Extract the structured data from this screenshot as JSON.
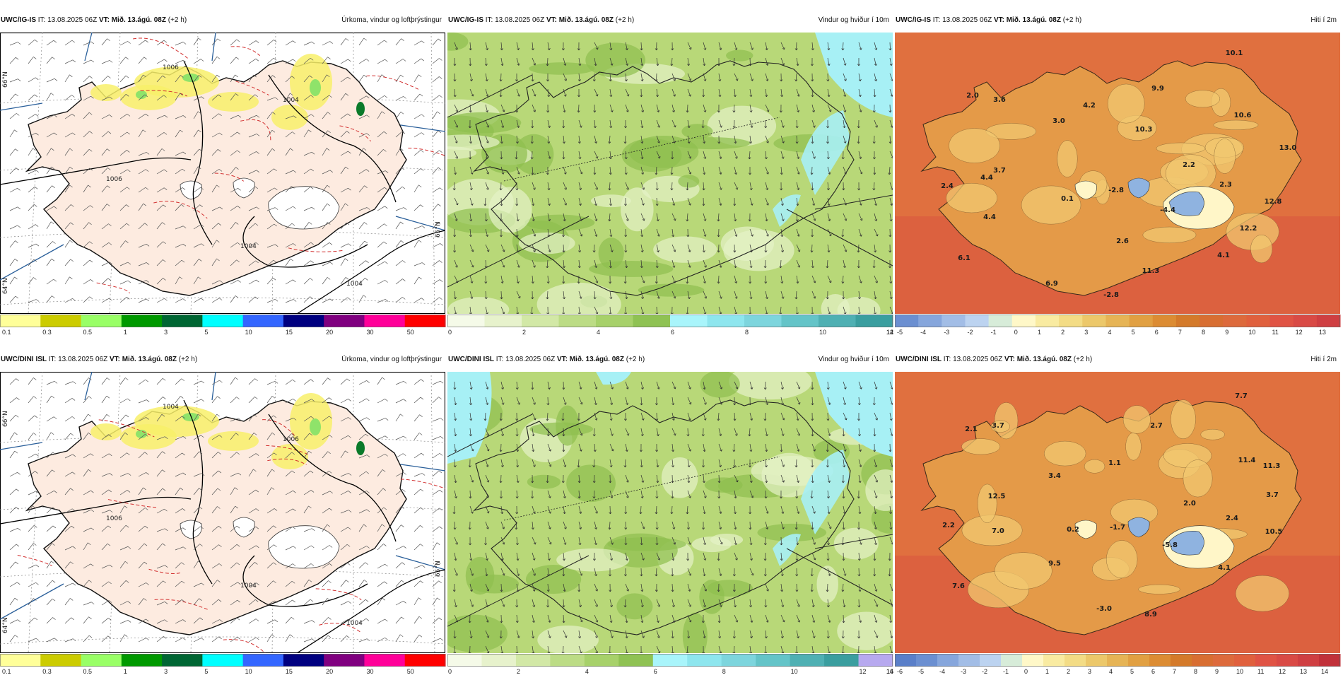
{
  "colors": {
    "land_precip": "#fdebe0",
    "sea_precip": "#ffffff",
    "wind_bg": "#b8d878",
    "wind_light": "#e6f2c7",
    "wind_dark": "#8fbf4f",
    "wind_cyan": "#a7f0f5",
    "temp_sea": "#e0703f",
    "temp_land": "#e49a48",
    "temp_high": "#f2c870",
    "temp_cold": "#8fb3e0"
  },
  "colorbars": {
    "precip": {
      "colors": [
        "#ffff99",
        "#cccc00",
        "#99ff66",
        "#009900",
        "#006633",
        "#00ffff",
        "#3366ff",
        "#000080",
        "#800080",
        "#ff0099",
        "#ff0000"
      ],
      "labels": [
        "0.1",
        "0.3",
        "0.5",
        "1",
        "3",
        "5",
        "10",
        "15",
        "20",
        "30",
        "50"
      ]
    },
    "wind_top": {
      "colors": [
        "#f5fae8",
        "#e7f2cc",
        "#d2e8a6",
        "#bcdc85",
        "#a7d16a",
        "#8fc253",
        "#a9f5fb",
        "#8ee6ee",
        "#7dd5dd",
        "#64c4c8",
        "#4fb0b3",
        "#3a9e9f"
      ],
      "labels": [
        "0",
        "2",
        "4",
        "6",
        "8",
        "10",
        "12",
        "14"
      ]
    },
    "wind_bottom": {
      "colors": [
        "#f5fae8",
        "#e7f2cc",
        "#d2e8a6",
        "#bcdc85",
        "#a7d16a",
        "#8fc253",
        "#a9f5fb",
        "#8ee6ee",
        "#7dd5dd",
        "#64c4c8",
        "#4fb0b3",
        "#3a9e9f",
        "#b7a9ef"
      ],
      "labels": [
        "0",
        "2",
        "4",
        "6",
        "8",
        "10",
        "12",
        "14",
        "16"
      ]
    },
    "temp_top": {
      "colors": [
        "#6b8fd1",
        "#86a6dc",
        "#a2bde6",
        "#bcd3f0",
        "#d7ecd9",
        "#fff8c8",
        "#f9eba1",
        "#f3dc85",
        "#ecc86a",
        "#e6b455",
        "#e1a042",
        "#dc8c33",
        "#d47a2a",
        "#d86e32",
        "#dd6a3c",
        "#e0603d",
        "#e05344",
        "#d94a45",
        "#cf3f42"
      ],
      "labels": [
        "-5",
        "-4",
        "-3",
        "-2",
        "-1",
        "0",
        "1",
        "2",
        "3",
        "4",
        "5",
        "6",
        "7",
        "8",
        "9",
        "10",
        "11",
        "12",
        "13"
      ]
    },
    "temp_bottom": {
      "colors": [
        "#5a7fc9",
        "#6b8fd1",
        "#86a6dc",
        "#a2bde6",
        "#bcd3f0",
        "#d7ecd9",
        "#fff8c8",
        "#f9eba1",
        "#f3dc85",
        "#ecc86a",
        "#e6b455",
        "#e1a042",
        "#dc8c33",
        "#d47a2a",
        "#d86e32",
        "#dd6a3c",
        "#e0603d",
        "#e05344",
        "#d94a45",
        "#cf3f42",
        "#c1313a"
      ],
      "labels": [
        "-6",
        "-5",
        "-4",
        "-3",
        "-2",
        "-1",
        "0",
        "1",
        "2",
        "3",
        "4",
        "5",
        "6",
        "7",
        "8",
        "9",
        "10",
        "11",
        "12",
        "13",
        "14"
      ]
    }
  },
  "panels": [
    {
      "model": "UWC/IG-IS",
      "it": "IT: 13.08.2025 06Z",
      "vt": "VT: Mið. 13.ágú. 08Z",
      "lead": "(+2 h)",
      "param": "Úrkoma, vindur og loftþrýstingur",
      "type": "precip",
      "bar": "precip",
      "isobars": [
        "1006",
        "1006",
        "1004",
        "1004",
        "1004"
      ],
      "lat": [
        "66°N",
        "65°N",
        "64°N"
      ]
    },
    {
      "model": "UWC/IG-IS",
      "it": "IT: 13.08.2025 06Z",
      "vt": "VT: Mið. 13.ágú. 08Z",
      "lead": "(+2 h)",
      "param": "Vindur og hviður í 10m",
      "type": "wind",
      "bar": "wind_top"
    },
    {
      "model": "UWC/IG-IS",
      "it": "IT: 13.08.2025 06Z",
      "vt": "VT: Mið. 13.ágú. 08Z",
      "lead": "(+2 h)",
      "param": "Hiti í 2m",
      "type": "temp",
      "bar": "temp_top",
      "values": [
        "10.1",
        "2.0",
        "3.6",
        "4.2",
        "9.9",
        "10.6",
        "3.0",
        "10.3",
        "13.0",
        "3.7",
        "2.2",
        "2.4",
        "4.4",
        "0.1",
        "-2.8",
        "2.3",
        "12.8",
        "4.4",
        "-4.4",
        "12.2",
        "2.6",
        "6.1",
        "4.1",
        "11.3",
        "6.9",
        "-2.8"
      ]
    },
    {
      "model": "UWC/DINI ISL",
      "it": "IT: 13.08.2025 06Z",
      "vt": "VT: Mið. 13.ágú. 08Z",
      "lead": "(+2 h)",
      "param": "Úrkoma, vindur og loftþrýstingur",
      "type": "precip",
      "bar": "precip",
      "isobars": [
        "1006",
        "1004",
        "1006",
        "1004",
        "1004"
      ],
      "lat": [
        "66°N",
        "65°N",
        "64°N"
      ]
    },
    {
      "model": "UWC/DINI ISL",
      "it": "IT: 13.08.2025 06Z",
      "vt": "VT: Mið. 13.ágú. 08Z",
      "lead": "(+2 h)",
      "param": "Vindur og hviður í 10m",
      "type": "wind",
      "bar": "wind_bottom"
    },
    {
      "model": "UWC/DINI ISL",
      "it": "IT: 13.08.2025 06Z",
      "vt": "VT: Mið. 13.ágú. 08Z",
      "lead": "(+2 h)",
      "param": "Hiti í 2m",
      "type": "temp",
      "bar": "temp_bottom",
      "values": [
        "7.7",
        "2.1",
        "3.7",
        "2.7",
        "11.4",
        "11.3",
        "1.1",
        "3.4",
        "3.7",
        "12.5",
        "2.0",
        "2.4",
        "2.2",
        "7.0",
        "0.2",
        "-1.7",
        "10.5",
        "-5.8",
        "9.5",
        "4.1",
        "7.6",
        "-3.0",
        "8.9"
      ]
    }
  ]
}
